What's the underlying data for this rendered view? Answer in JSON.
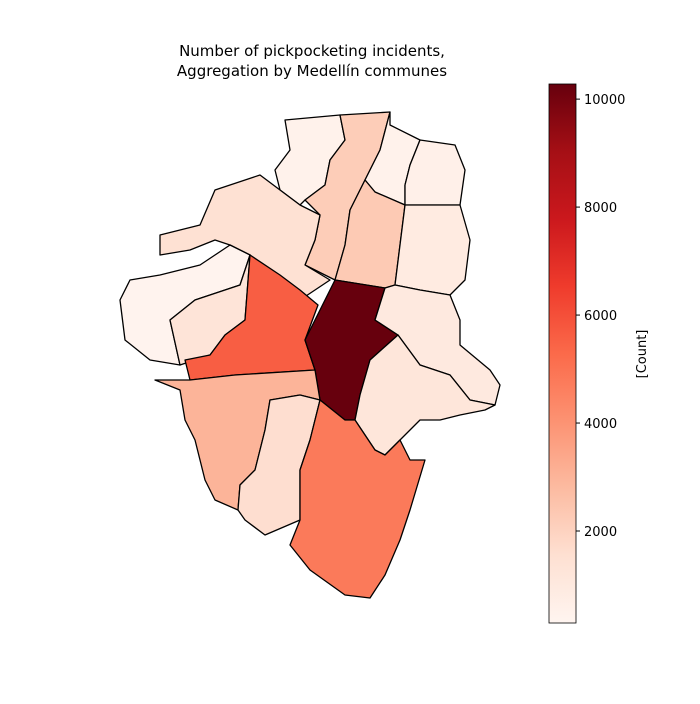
{
  "chart_data": {
    "type": "choropleth",
    "title": [
      "Number of pickpocketing incidents,",
      "Aggregation by Medellín communes"
    ],
    "colorbar_label": "[Count]",
    "values": [
      500,
      2200,
      500,
      600,
      1500,
      2300,
      900,
      400,
      1300,
      5600,
      10300,
      1000,
      1200,
      3000,
      1600,
      4800
    ],
    "colormap": [
      "#fff5f0",
      "#fee0d2",
      "#fcbba1",
      "#fc9272",
      "#fb6a4a",
      "#ef3b2c",
      "#cb181d",
      "#a50f15",
      "#67000d"
    ],
    "edgecolor": "#000000",
    "ylim": [
      296,
      10280
    ],
    "yticks": [
      2000,
      4000,
      6000,
      8000,
      10000
    ]
  }
}
